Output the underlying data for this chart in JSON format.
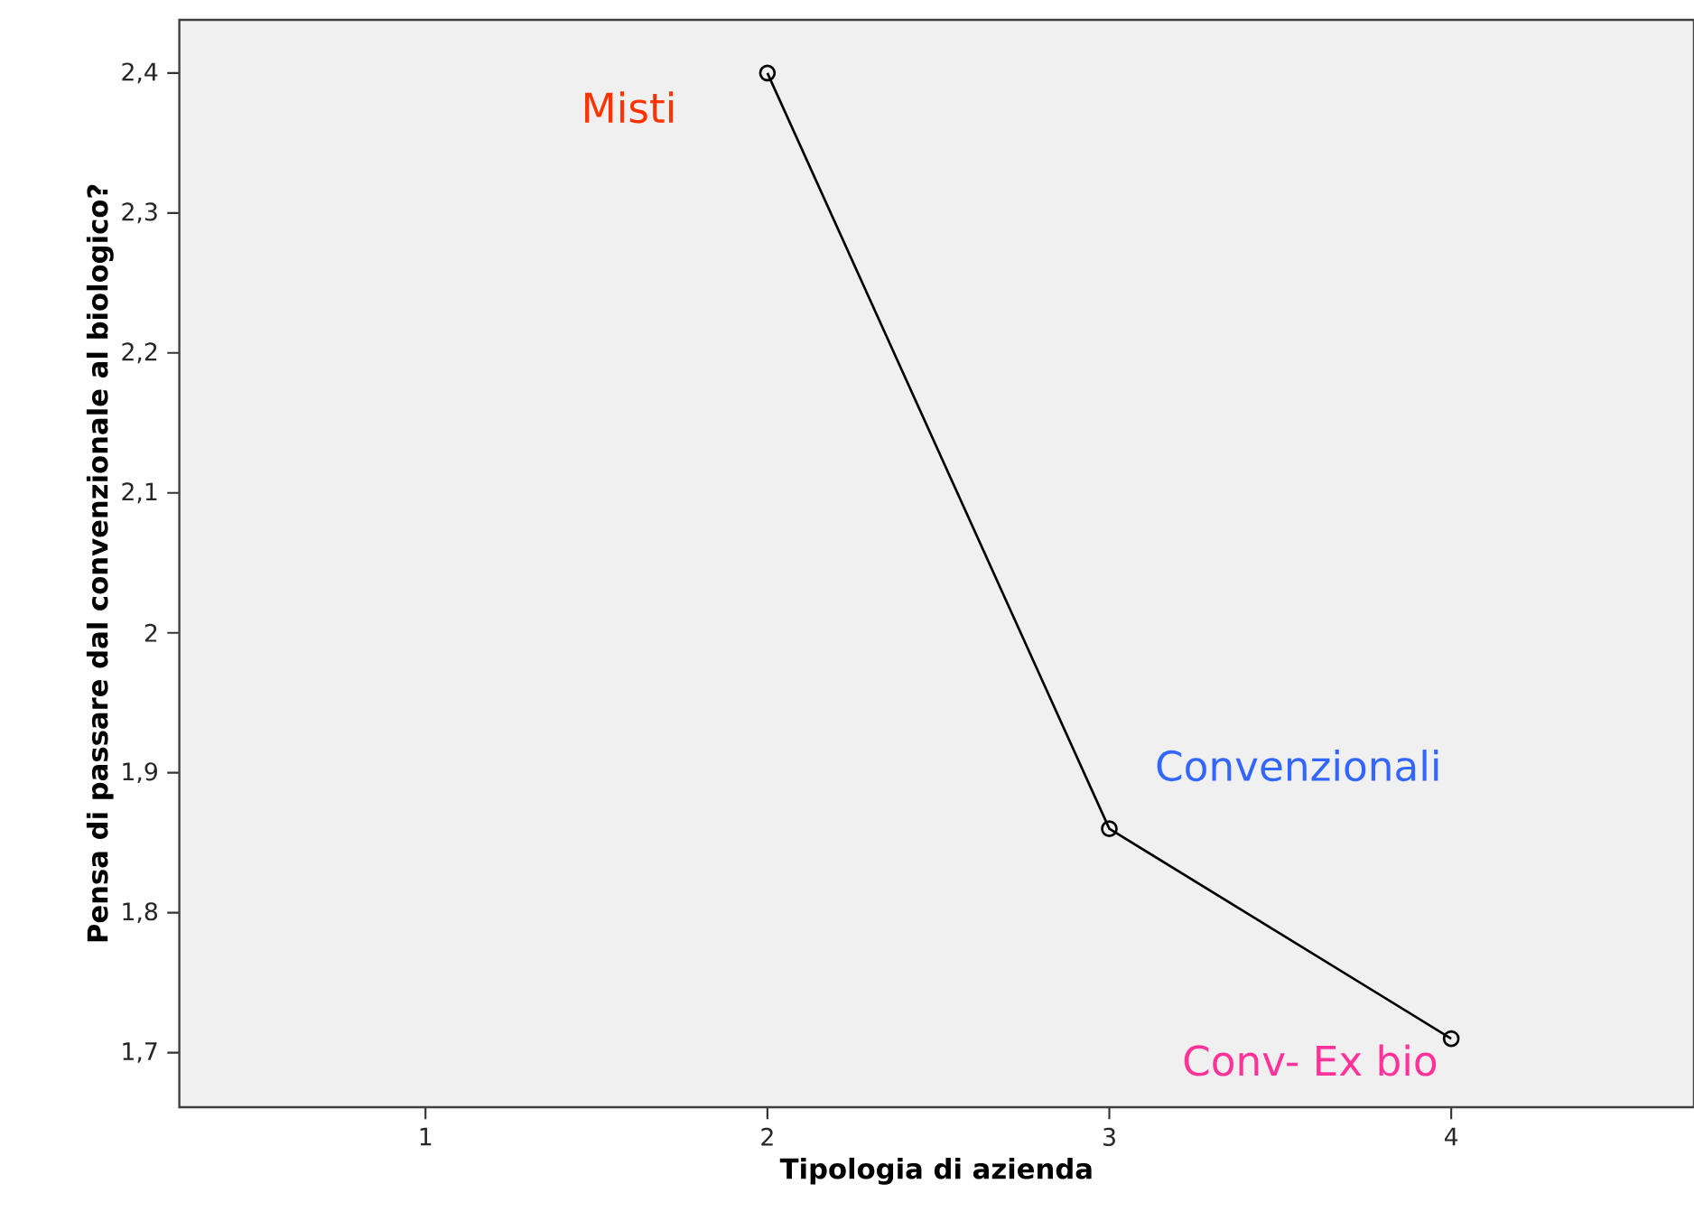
{
  "chart_data": {
    "type": "line",
    "xlabel": "Tipologia di azienda",
    "ylabel": "Pensa di passare dal convenzionale al biologico?",
    "x": [
      2,
      3,
      4
    ],
    "series": [
      {
        "color": "#000000",
        "values": [
          2.4,
          1.86,
          1.71
        ]
      }
    ],
    "xlim": [
      0.28,
      4.71
    ],
    "ylim": [
      1.661,
      2.438
    ],
    "xticks": [
      1,
      2,
      3,
      4
    ],
    "yticks": [
      {
        "value": 1.7,
        "label": "1,7"
      },
      {
        "value": 1.8,
        "label": "1,8"
      },
      {
        "value": 1.9,
        "label": "1,9"
      },
      2,
      {
        "value": 2.1,
        "label": "2,1"
      },
      {
        "value": 2.2,
        "label": "2,2"
      },
      {
        "value": 2.3,
        "label": "2,3"
      },
      {
        "value": 2.4,
        "label": "2,4"
      }
    ],
    "marker": "circle",
    "line_style": "solid",
    "grid": false,
    "annotations": [
      {
        "text": "Misti",
        "x": 2,
        "y": 2.4
      },
      {
        "text": "Convenzionali",
        "x": 3,
        "y": 1.86
      },
      {
        "text": "Conv- Ex bio",
        "x": 4,
        "y": 1.71
      }
    ]
  }
}
